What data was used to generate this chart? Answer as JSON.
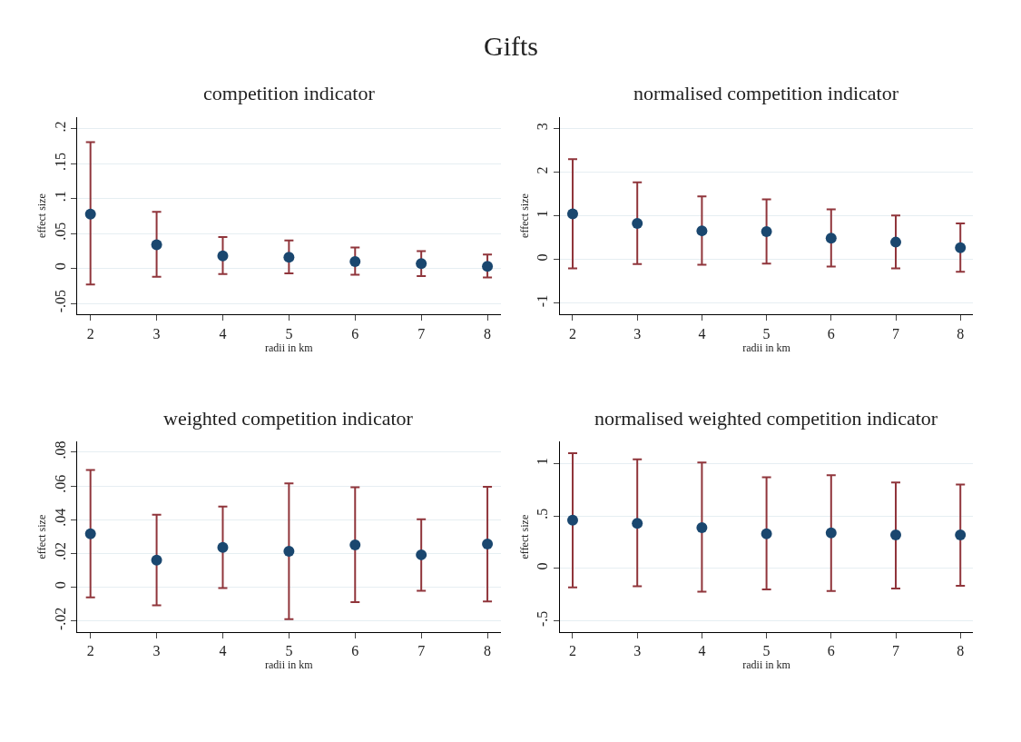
{
  "chart_data": [
    {
      "type": "scatter",
      "title": "competition indicator",
      "xlabel": "radii in km",
      "ylabel": "effect size",
      "annotations": [
        "Gifts"
      ],
      "marker": "circle",
      "grid": "y",
      "color": "#1a476f",
      "x": [
        2,
        3,
        4,
        5,
        6,
        7,
        8
      ],
      "values": [
        0.078,
        0.034,
        0.018,
        0.016,
        0.01,
        0.007,
        0.003
      ],
      "errors": [
        [
          -0.023,
          0.181
        ],
        [
          -0.012,
          0.081
        ],
        [
          -0.008,
          0.045
        ],
        [
          -0.007,
          0.04
        ],
        [
          -0.009,
          0.03
        ],
        [
          -0.011,
          0.025
        ],
        [
          -0.013,
          0.02
        ]
      ],
      "xlim": [
        1.8,
        8.2
      ],
      "xticks": [
        2,
        3,
        4,
        5,
        6,
        7,
        8
      ],
      "ylim": [
        -0.066,
        0.217
      ],
      "yticks": [
        {
          "value": -0.05,
          "label": "-.05"
        },
        0,
        {
          "value": 0.05,
          "label": ".05"
        },
        {
          "value": 0.1,
          "label": ".1"
        },
        {
          "value": 0.15,
          "label": ".15"
        },
        {
          "value": 0.2,
          "label": ".2"
        }
      ]
    },
    {
      "type": "scatter",
      "title": "normalised competition indicator",
      "xlabel": "radii in km",
      "ylabel": "effect size",
      "marker": "circle",
      "grid": "y",
      "color": "#1a476f",
      "x": [
        2,
        3,
        4,
        5,
        6,
        7,
        8
      ],
      "values": [
        1.05,
        0.83,
        0.66,
        0.64,
        0.49,
        0.4,
        0.27
      ],
      "errors": [
        [
          -0.2,
          2.3
        ],
        [
          -0.1,
          1.77
        ],
        [
          -0.12,
          1.45
        ],
        [
          -0.09,
          1.38
        ],
        [
          -0.16,
          1.15
        ],
        [
          -0.2,
          1.01
        ],
        [
          -0.28,
          0.83
        ]
      ],
      "xlim": [
        1.8,
        8.2
      ],
      "xticks": [
        2,
        3,
        4,
        5,
        6,
        7,
        8
      ],
      "ylim": [
        -1.26,
        3.27
      ],
      "yticks": [
        -1,
        0,
        1,
        2,
        3
      ]
    },
    {
      "type": "scatter",
      "title": "weighted competition indicator",
      "xlabel": "radii in km",
      "ylabel": "effect size",
      "marker": "circle",
      "grid": "y",
      "color": "#1a476f",
      "x": [
        2,
        3,
        4,
        5,
        6,
        7,
        8
      ],
      "values": [
        0.0317,
        0.016,
        0.0236,
        0.0213,
        0.0251,
        0.0192,
        0.0256
      ],
      "errors": [
        [
          -0.006,
          0.0694
        ],
        [
          -0.0107,
          0.043
        ],
        [
          -0.0005,
          0.0478
        ],
        [
          -0.019,
          0.0615
        ],
        [
          -0.0088,
          0.0592
        ],
        [
          -0.0021,
          0.0403
        ],
        [
          -0.0084,
          0.0595
        ]
      ],
      "xlim": [
        1.8,
        8.2
      ],
      "xticks": [
        2,
        3,
        4,
        5,
        6,
        7,
        8
      ],
      "ylim": [
        -0.0266,
        0.0863
      ],
      "yticks": [
        {
          "value": -0.02,
          "label": "-.02"
        },
        0,
        {
          "value": 0.02,
          "label": ".02"
        },
        {
          "value": 0.04,
          "label": ".04"
        },
        {
          "value": 0.06,
          "label": ".06"
        },
        {
          "value": 0.08,
          "label": ".08"
        }
      ]
    },
    {
      "type": "scatter",
      "title": "normalised weighted competition indicator",
      "xlabel": "radii in km",
      "ylabel": "effect size",
      "marker": "circle",
      "grid": "y",
      "color": "#1a476f",
      "x": [
        2,
        3,
        4,
        5,
        6,
        7,
        8
      ],
      "values": [
        0.46,
        0.43,
        0.39,
        0.33,
        0.34,
        0.32,
        0.32
      ],
      "errors": [
        [
          -0.18,
          1.1
        ],
        [
          -0.17,
          1.04
        ],
        [
          -0.22,
          1.01
        ],
        [
          -0.2,
          0.87
        ],
        [
          -0.215,
          0.89
        ],
        [
          -0.19,
          0.82
        ],
        [
          -0.165,
          0.8
        ]
      ],
      "xlim": [
        1.8,
        8.2
      ],
      "xticks": [
        2,
        3,
        4,
        5,
        6,
        7,
        8
      ],
      "ylim": [
        -0.606,
        1.21
      ],
      "yticks": [
        {
          "value": -0.5,
          "label": "-.5"
        },
        0,
        {
          "value": 0.5,
          "label": ".5"
        },
        1
      ]
    }
  ]
}
